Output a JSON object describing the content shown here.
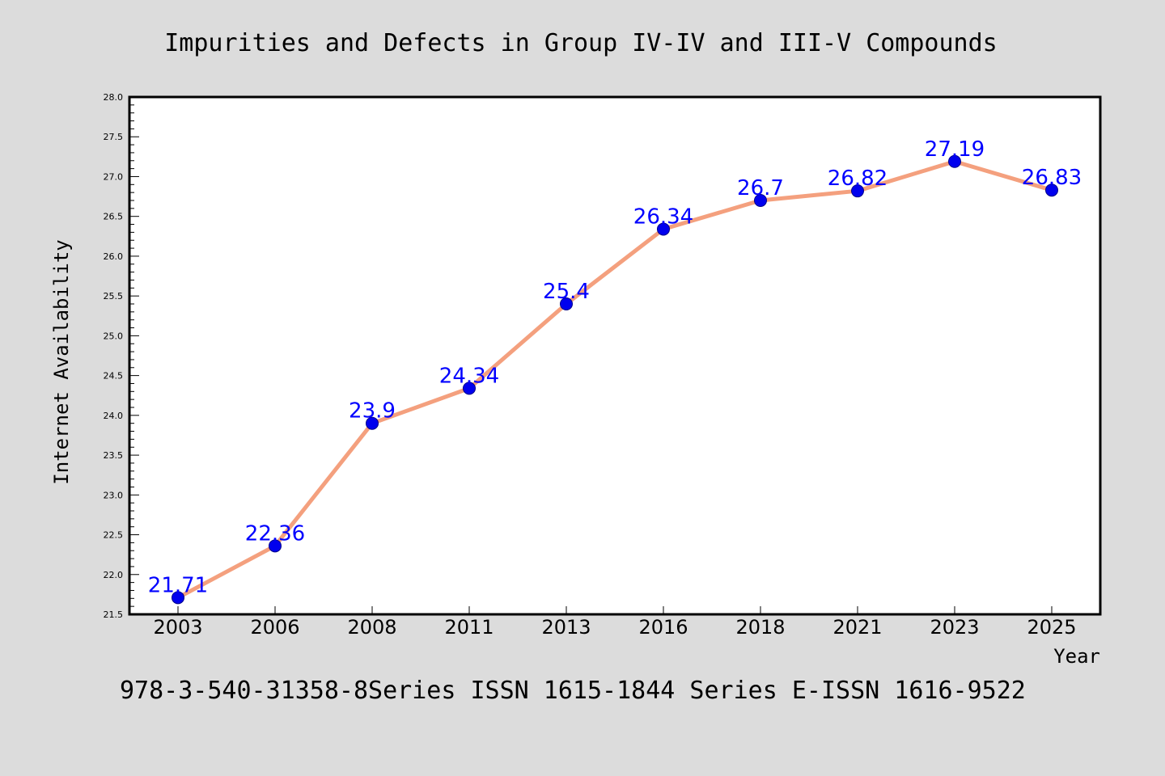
{
  "chart_data": {
    "type": "line",
    "title": "Impurities and Defects in Group IV-IV and III-V Compounds",
    "xlabel": "Year",
    "ylabel": "Internet Availability",
    "categories": [
      "2003",
      "2006",
      "2008",
      "2011",
      "2013",
      "2016",
      "2018",
      "2021",
      "2023",
      "2025"
    ],
    "series": [
      {
        "values": [
          21.71,
          22.36,
          23.9,
          24.34,
          25.4,
          26.34,
          26.7,
          26.82,
          27.19,
          26.83
        ],
        "value_labels": [
          "21.71",
          "22.36",
          "23.9",
          "24.34",
          "25.4",
          "26.34",
          "26.7",
          "26.82",
          "27.19",
          "26.83"
        ]
      }
    ],
    "ylim": [
      21.5,
      28.0
    ],
    "y_ticks": [
      "21.5",
      "22.0",
      "22.5",
      "23.0",
      "23.5",
      "24.0",
      "24.5",
      "25.0",
      "25.5",
      "26.0",
      "26.5",
      "27.0",
      "27.5",
      "28.0"
    ],
    "grid": false,
    "legend": "none",
    "footer": "978-3-540-31358-8Series ISSN 1615-1844 Series E-ISSN 1616-9522",
    "colors": {
      "background": "#dcdcdc",
      "plot_background": "#ffffff",
      "line": "#f4a07e",
      "marker": "#0000ee",
      "data_label": "#0000ff",
      "text": "#000000"
    }
  }
}
